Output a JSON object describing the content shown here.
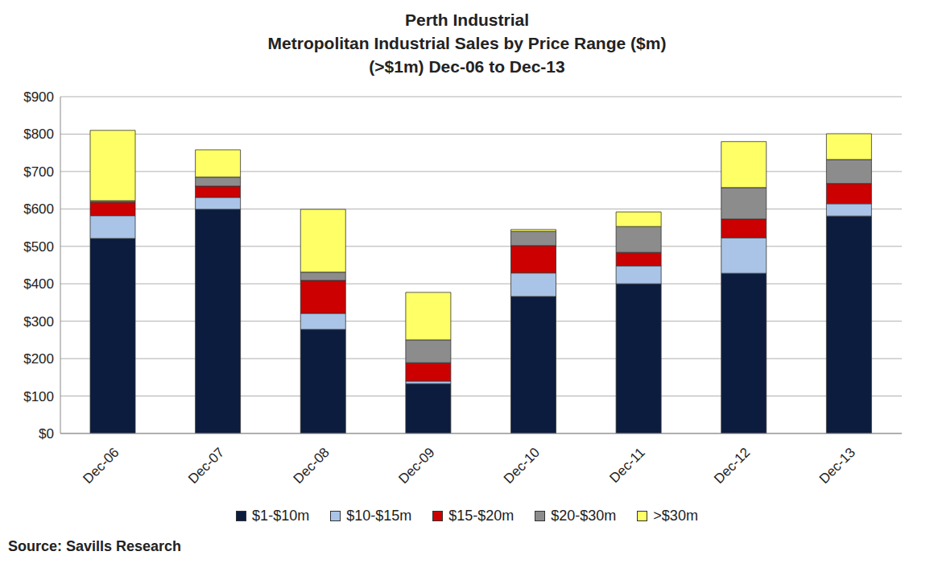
{
  "chart_data": {
    "type": "bar",
    "title": "Perth Industrial",
    "subtitle": [
      "Metropolitan Industrial Sales by Price Range ($m)",
      "(>$1m) Dec-06 to Dec-13"
    ],
    "annotations": [
      "Source: Savills Research"
    ],
    "categories": [
      "Dec-06",
      "Dec-07",
      "Dec-08",
      "Dec-09",
      "Dec-10",
      "Dec-11",
      "Dec-12",
      "Dec-13"
    ],
    "series": [
      {
        "name": "$1-$10m",
        "color": "#0c1c3f",
        "values": [
          521,
          599,
          278,
          133,
          366,
          400,
          428,
          581
        ]
      },
      {
        "name": "$10-$15m",
        "color": "#a9c4e6",
        "values": [
          61,
          32,
          43,
          7,
          63,
          48,
          95,
          33
        ]
      },
      {
        "name": "$15-$20m",
        "color": "#cc0000",
        "values": [
          36,
          30,
          88,
          49,
          73,
          36,
          50,
          54
        ]
      },
      {
        "name": "$20-$30m",
        "color": "#8c8c8c",
        "values": [
          4,
          24,
          22,
          61,
          38,
          69,
          84,
          64
        ]
      },
      {
        "name": ">$30m",
        "color": "#ffff66",
        "values": [
          188,
          73,
          168,
          127,
          5,
          39,
          123,
          69
        ]
      }
    ],
    "stacked": true,
    "ylim": [
      0,
      900
    ],
    "yticks": [
      {
        "value": 0,
        "label": "$0"
      },
      {
        "value": 100,
        "label": "$100"
      },
      {
        "value": 200,
        "label": "$200"
      },
      {
        "value": 300,
        "label": "$300"
      },
      {
        "value": 400,
        "label": "$400"
      },
      {
        "value": 500,
        "label": "$500"
      },
      {
        "value": 600,
        "label": "$600"
      },
      {
        "value": 700,
        "label": "$700"
      },
      {
        "value": 800,
        "label": "$800"
      },
      {
        "value": 900,
        "label": "$900"
      }
    ],
    "grid": true,
    "legend": "bottom"
  }
}
